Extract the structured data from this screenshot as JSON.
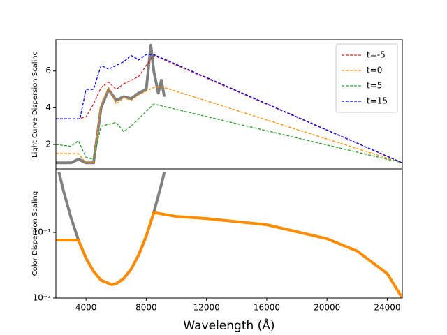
{
  "chart_data": [
    {
      "type": "line",
      "ylabel": "Light Curve Dispersion Scaling",
      "linestyle": "dashed",
      "xlim": [
        2000,
        25000
      ],
      "ylim": [
        0.67,
        7.7
      ],
      "yticks": [
        2,
        4,
        6
      ],
      "legend": "upper right",
      "series": [
        {
          "color": "#808080",
          "x": [
            2000,
            2500,
            3000,
            3500,
            4000,
            4500,
            5000,
            5500,
            6000,
            6500,
            7000,
            7500,
            8000,
            8300,
            8500,
            8800,
            9000,
            9200
          ],
          "values": [
            1.0,
            1.0,
            1.0,
            1.2,
            1.0,
            1.0,
            4.0,
            5.0,
            4.4,
            4.6,
            4.5,
            4.8,
            5.0,
            7.4,
            6.0,
            4.8,
            5.5,
            4.6
          ]
        },
        {
          "name": "t=-5",
          "color": "#d62728",
          "x": [
            2000,
            3500,
            4000,
            4500,
            5000,
            5500,
            6000,
            6500,
            7000,
            7500,
            8000,
            8500,
            25000
          ],
          "values": [
            3.4,
            3.4,
            3.5,
            4.2,
            5.1,
            5.4,
            5.0,
            5.3,
            5.5,
            5.7,
            6.3,
            6.85,
            1.0
          ]
        },
        {
          "name": "t=0",
          "color": "#ff8c00",
          "x": [
            2000,
            3500,
            4000,
            4500,
            5000,
            5500,
            6000,
            6500,
            7000,
            7500,
            8000,
            8500,
            9000,
            25000
          ],
          "values": [
            1.5,
            1.5,
            1.0,
            1.0,
            4.2,
            5.1,
            4.2,
            4.55,
            4.4,
            4.7,
            4.9,
            5.1,
            5.15,
            1.0
          ]
        },
        {
          "name": "t=5",
          "color": "#2ca02c",
          "x": [
            2000,
            3000,
            3500,
            4000,
            4500,
            5000,
            5500,
            6000,
            6500,
            7000,
            7500,
            8000,
            8500,
            25000
          ],
          "values": [
            2.0,
            1.9,
            2.2,
            1.3,
            1.2,
            3.0,
            3.1,
            3.2,
            2.7,
            3.0,
            3.4,
            3.8,
            4.2,
            1.0
          ]
        },
        {
          "name": "t=15",
          "color": "#0000ff",
          "x": [
            2000,
            3600,
            4000,
            4500,
            5000,
            5500,
            6000,
            6500,
            7000,
            7500,
            8000,
            8500,
            25000
          ],
          "values": [
            3.4,
            3.4,
            5.0,
            5.0,
            6.3,
            6.1,
            6.3,
            6.5,
            6.85,
            6.6,
            6.9,
            6.9,
            1.0
          ]
        }
      ]
    },
    {
      "type": "line",
      "ylabel": "Color Dispersion Scaling",
      "xlabel": "Wavelength (Å)",
      "linestyle": "dashed",
      "ylog": true,
      "xlim": [
        2000,
        25000
      ],
      "xticks": [
        4000,
        8000,
        12000,
        16000,
        20000,
        24000
      ],
      "ylim": [
        0.01,
        0.93
      ],
      "yticks": [
        {
          "value": 0.01,
          "label": "10⁻²"
        },
        {
          "value": 0.1,
          "label": "10⁻¹"
        }
      ],
      "series": [
        {
          "color": "#808080",
          "x": [
            2200,
            2500,
            3000,
            3500,
            4000,
            4500,
            5000,
            5700,
            6000,
            6500,
            7000,
            7500,
            8000,
            8500,
            9000,
            9200
          ],
          "values": [
            0.83,
            0.435,
            0.168,
            0.0762,
            0.0406,
            0.0255,
            0.0187,
            0.016,
            0.0165,
            0.0197,
            0.0276,
            0.0455,
            0.0881,
            0.201,
            0.536,
            0.83
          ]
        },
        {
          "color": "#ff8c00",
          "x": [
            2000,
            3500,
            4000,
            4500,
            5000,
            5700,
            6000,
            6500,
            7000,
            7500,
            8000,
            8500,
            10000,
            12000,
            16000,
            20000,
            22000,
            24000,
            25000
          ],
          "values": [
            0.0762,
            0.0762,
            0.0406,
            0.0255,
            0.0187,
            0.016,
            0.0165,
            0.0197,
            0.0276,
            0.0455,
            0.0881,
            0.201,
            0.175,
            0.163,
            0.131,
            0.08,
            0.052,
            0.0236,
            0.01
          ]
        }
      ]
    }
  ]
}
